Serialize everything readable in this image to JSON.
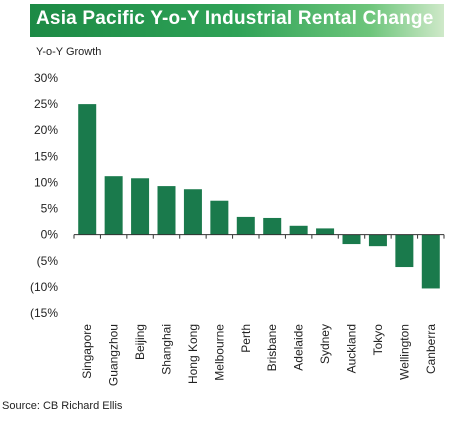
{
  "title": "Asia Pacific Y-o-Y Industrial Rental Change",
  "source": "Source: CB Richard Ellis",
  "chart_data": {
    "type": "bar",
    "title": "Asia Pacific Y-o-Y Industrial Rental Change",
    "ylabel": "Y-o-Y Growth",
    "xlabel": "",
    "categories": [
      "Singapore",
      "Guangzhou",
      "Beijing",
      "Shanghai",
      "Hong Kong",
      "Melbourne",
      "Perth",
      "Brisbane",
      "Adelaide",
      "Sydney",
      "Auckland",
      "Tokyo",
      "Wellington",
      "Canberra"
    ],
    "values": [
      25,
      11.2,
      10.8,
      9.3,
      8.7,
      6.5,
      3.4,
      3.2,
      1.7,
      1.2,
      -1.8,
      -2.2,
      -6.2,
      -10.3
    ],
    "ylim": [
      -15,
      30
    ],
    "yticks": [
      30,
      25,
      20,
      15,
      10,
      5,
      0,
      -5,
      -10,
      -15
    ],
    "ytick_labels": [
      "30%",
      "25%",
      "20%",
      "15%",
      "10%",
      "5%",
      "0%",
      "(5%",
      "(10%",
      "(15%"
    ],
    "grid": false,
    "bar_color": "#1a7a4c"
  }
}
